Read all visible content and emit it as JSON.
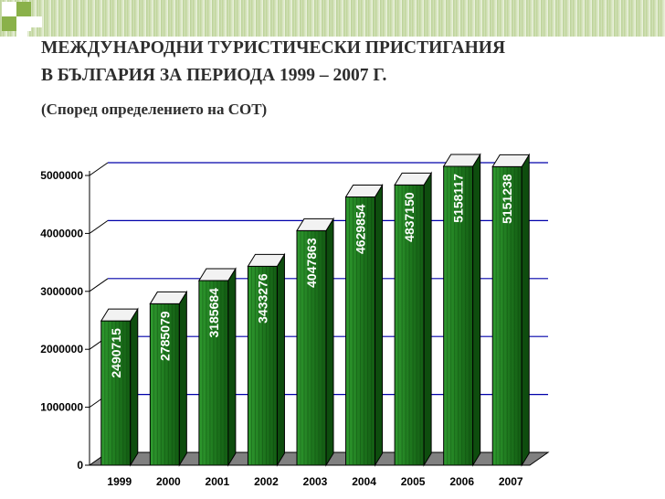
{
  "slide": {
    "title_line1": "МЕЖДУНАРОДНИ ТУРИСТИЧЕСКИ ПРИСТИГАНИЯ",
    "title_line2": "В БЪЛГАРИЯ ЗА ПЕРИОДА 1999 – 2007 Г.",
    "subtitle": "(Според определението на СОТ)"
  },
  "colors": {
    "bar_front": "#1f7a1f",
    "bar_side": "#0e4d0e",
    "bar_top": "#f2f2f2",
    "gridline": "#0000aa",
    "floor": "#808080",
    "header_green": "#8ab14a"
  },
  "chart_data": {
    "type": "bar",
    "categories": [
      "1999",
      "2000",
      "2001",
      "2002",
      "2003",
      "2004",
      "2005",
      "2006",
      "2007"
    ],
    "values": [
      2490715,
      2785079,
      3185684,
      3433276,
      4047863,
      4629854,
      4837150,
      5158117,
      5151238
    ],
    "data_labels": [
      "2490715",
      "2785079",
      "3185684",
      "3433276",
      "4047863",
      "4629854",
      "4837150",
      "5158117",
      "5151238"
    ],
    "y_ticks": [
      0,
      1000000,
      2000000,
      3000000,
      4000000,
      5000000
    ],
    "y_tick_labels": [
      "0",
      "1000000",
      "2000000",
      "3000000",
      "4000000",
      "5000000"
    ],
    "ylim": [
      0,
      5000000
    ],
    "title": "",
    "xlabel": "",
    "ylabel": "",
    "grid": true,
    "style": "3d-column"
  }
}
